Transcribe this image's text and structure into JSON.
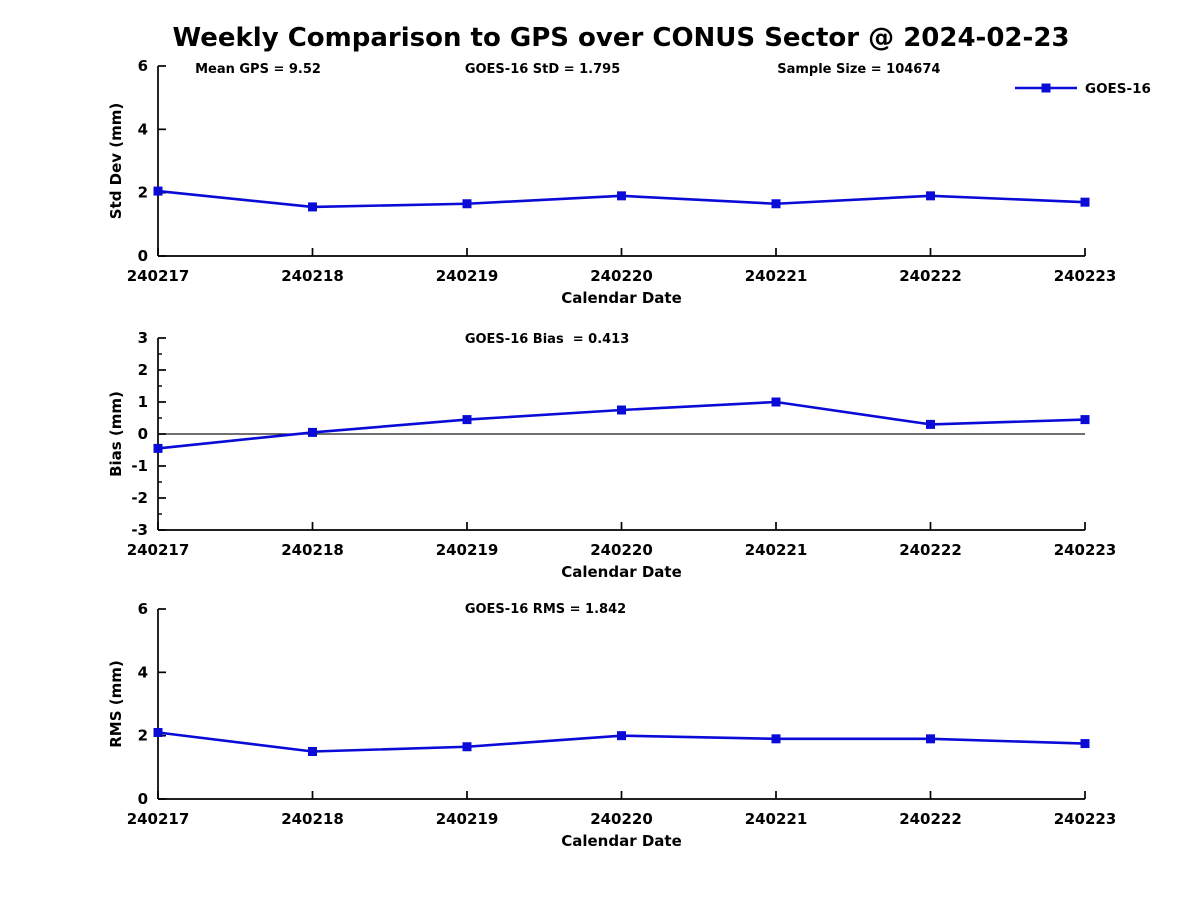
{
  "figure_title": "Weekly Comparison to GPS over CONUS Sector @ 2024-02-23",
  "series_color": "#0b0bd8",
  "axis_color": "#000000",
  "zero_line_color": "#1a1a1a",
  "legend": {
    "label": "GOES-16"
  },
  "chart_data": [
    {
      "type": "line",
      "annotations": [
        "Mean GPS = 9.52",
        "GOES-16 StD = 1.795",
        "Sample Size = 104674"
      ],
      "xlabel": "Calendar Date",
      "ylabel": "Std Dev (mm)",
      "ylim": [
        0,
        6
      ],
      "yticks": [
        0,
        2,
        4,
        6
      ],
      "categories": [
        "240217",
        "240218",
        "240219",
        "240220",
        "240221",
        "240222",
        "240223"
      ],
      "series": [
        {
          "name": "GOES-16",
          "values": [
            2.05,
            1.55,
            1.65,
            1.9,
            1.65,
            1.9,
            1.7
          ]
        }
      ],
      "show_legend": true,
      "legend_position": "top-right",
      "zero_line": false,
      "grid": false
    },
    {
      "type": "line",
      "annotations": [
        "GOES-16 Bias  = 0.413"
      ],
      "xlabel": "Calendar Date",
      "ylabel": "Bias (mm)",
      "ylim": [
        -3,
        3
      ],
      "yticks": [
        -3,
        -2,
        -1,
        0,
        1,
        2,
        3
      ],
      "minor_tick_step": 0.5,
      "categories": [
        "240217",
        "240218",
        "240219",
        "240220",
        "240221",
        "240222",
        "240223"
      ],
      "series": [
        {
          "name": "GOES-16",
          "values": [
            -0.45,
            0.05,
            0.45,
            0.75,
            1.0,
            0.3,
            0.45
          ]
        }
      ],
      "show_legend": false,
      "zero_line": true,
      "grid": false
    },
    {
      "type": "line",
      "annotations": [
        "GOES-16 RMS = 1.842"
      ],
      "xlabel": "Calendar Date",
      "ylabel": "RMS (mm)",
      "ylim": [
        0,
        6
      ],
      "yticks": [
        0,
        2,
        4,
        6
      ],
      "categories": [
        "240217",
        "240218",
        "240219",
        "240220",
        "240221",
        "240222",
        "240223"
      ],
      "series": [
        {
          "name": "GOES-16",
          "values": [
            2.1,
            1.5,
            1.65,
            2.0,
            1.9,
            1.9,
            1.75
          ]
        }
      ],
      "show_legend": false,
      "zero_line": false,
      "grid": false
    }
  ]
}
